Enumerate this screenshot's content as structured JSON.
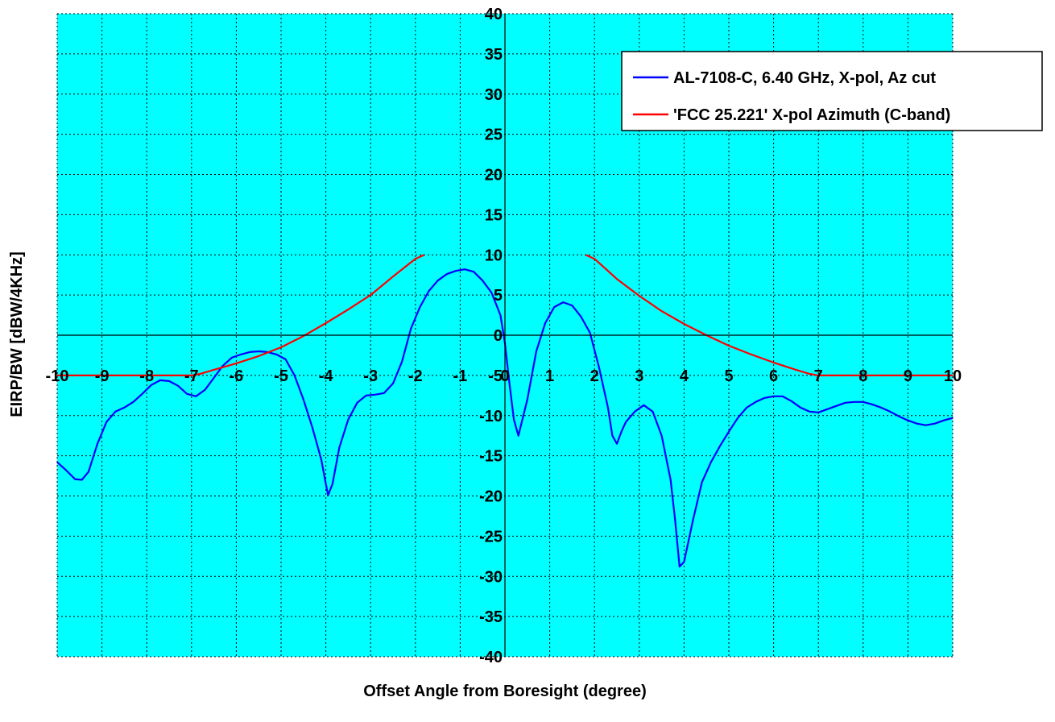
{
  "chart_data": {
    "type": "line",
    "title": "",
    "xlabel": "Offset Angle from Boresight (degree)",
    "ylabel": "EIRP/BW [dBW/4KHz]",
    "xlim": [
      -10,
      10
    ],
    "ylim": [
      -40,
      40
    ],
    "x_ticks": [
      -10,
      -9,
      -8,
      -7,
      -6,
      -5,
      -4,
      -3,
      -2,
      -1,
      0,
      1,
      2,
      3,
      4,
      5,
      6,
      7,
      8,
      9,
      10
    ],
    "y_ticks": [
      -40,
      -35,
      -30,
      -25,
      -20,
      -15,
      -10,
      -5,
      0,
      5,
      10,
      15,
      20,
      25,
      30,
      35,
      40
    ],
    "x_tick_labels": [
      "-10",
      "-9",
      "-8",
      "-7",
      "-6",
      "-5",
      "-4",
      "-3",
      "-2",
      "-1",
      "0",
      "1",
      "2",
      "3",
      "4",
      "5",
      "6",
      "7",
      "8",
      "9",
      "10"
    ],
    "y_tick_labels": [
      "-40",
      "-35",
      "-30",
      "-25",
      "-20",
      "-15",
      "-10",
      "-5",
      "0",
      "5",
      "10",
      "15",
      "20",
      "25",
      "30",
      "35",
      "40"
    ],
    "grid": true,
    "plot_background": "#00ffff",
    "legend_position": "top-right",
    "series": [
      {
        "name": "AL-7108-C, 6.40 GHz, X-pol, Az cut",
        "color": "#0000ff",
        "x": [
          -10,
          -9.8,
          -9.6,
          -9.45,
          -9.3,
          -9.1,
          -8.9,
          -8.7,
          -8.5,
          -8.3,
          -8.1,
          -7.9,
          -7.7,
          -7.5,
          -7.3,
          -7.1,
          -6.9,
          -6.7,
          -6.5,
          -6.3,
          -6.1,
          -5.9,
          -5.7,
          -5.5,
          -5.3,
          -5.1,
          -4.9,
          -4.7,
          -4.5,
          -4.3,
          -4.1,
          -4.0,
          -3.95,
          -3.85,
          -3.7,
          -3.5,
          -3.3,
          -3.1,
          -2.9,
          -2.7,
          -2.5,
          -2.3,
          -2.1,
          -1.9,
          -1.7,
          -1.5,
          -1.3,
          -1.1,
          -0.9,
          -0.7,
          -0.5,
          -0.3,
          -0.1,
          0.0,
          0.1,
          0.2,
          0.3,
          0.5,
          0.7,
          0.9,
          1.1,
          1.3,
          1.5,
          1.7,
          1.9,
          2.1,
          2.3,
          2.4,
          2.5,
          2.6,
          2.7,
          2.9,
          3.1,
          3.3,
          3.5,
          3.7,
          3.8,
          3.9,
          4.0,
          4.2,
          4.4,
          4.6,
          4.8,
          5.0,
          5.2,
          5.4,
          5.6,
          5.8,
          6.0,
          6.2,
          6.4,
          6.6,
          6.8,
          7.0,
          7.2,
          7.4,
          7.6,
          7.8,
          8.0,
          8.2,
          8.4,
          8.6,
          8.8,
          9.0,
          9.2,
          9.4,
          9.6,
          9.8,
          10.0
        ],
        "y": [
          -15.8,
          -16.8,
          -17.9,
          -18.0,
          -17.0,
          -13.5,
          -10.8,
          -9.5,
          -9.0,
          -8.3,
          -7.3,
          -6.2,
          -5.6,
          -5.7,
          -6.3,
          -7.3,
          -7.6,
          -6.8,
          -5.3,
          -3.8,
          -2.8,
          -2.4,
          -2.1,
          -2.0,
          -2.1,
          -2.4,
          -3.0,
          -5.0,
          -8.0,
          -11.5,
          -15.5,
          -18.5,
          -19.9,
          -18.5,
          -14.0,
          -10.5,
          -8.4,
          -7.5,
          -7.4,
          -7.2,
          -6.0,
          -3.3,
          0.8,
          3.5,
          5.5,
          6.8,
          7.6,
          8.0,
          8.2,
          7.9,
          6.8,
          5.3,
          2.5,
          -1.0,
          -6.0,
          -10.5,
          -12.5,
          -8.0,
          -2.0,
          1.5,
          3.5,
          4.1,
          3.7,
          2.3,
          0.3,
          -4.0,
          -9.0,
          -12.5,
          -13.5,
          -12.0,
          -10.8,
          -9.5,
          -8.7,
          -9.5,
          -12.5,
          -18.0,
          -23.0,
          -28.8,
          -28.2,
          -23.0,
          -18.3,
          -15.8,
          -13.8,
          -12.0,
          -10.3,
          -9.0,
          -8.3,
          -7.8,
          -7.6,
          -7.6,
          -8.2,
          -9.0,
          -9.5,
          -9.6,
          -9.2,
          -8.8,
          -8.4,
          -8.3,
          -8.3,
          -8.6,
          -9.0,
          -9.5,
          -10.1,
          -10.6,
          -11.0,
          -11.2,
          -11.0,
          -10.6,
          -10.3
        ]
      },
      {
        "name": "'FCC 25.221' X-pol Azimuth (C-band)",
        "color": "#ff0000",
        "segments": [
          {
            "x": [
              -10,
              -9.5,
              -9.0,
              -8.5,
              -8.0,
              -7.5,
              -7.0,
              -6.8,
              -6.5,
              -6.0,
              -5.5,
              -5.0,
              -4.5,
              -4.0,
              -3.5,
              -3.0,
              -2.5,
              -2.0,
              -1.8
            ],
            "y": [
              -5.0,
              -5.0,
              -5.0,
              -5.0,
              -5.0,
              -5.0,
              -5.0,
              -4.8,
              -4.3,
              -3.5,
              -2.6,
              -1.5,
              -0.1,
              1.5,
              3.2,
              5.0,
              7.3,
              9.5,
              10.0
            ]
          },
          {
            "x": [
              1.8,
              2.0,
              2.5,
              3.0,
              3.5,
              4.0,
              4.5,
              5.0,
              5.5,
              6.0,
              6.5,
              6.8,
              7.0,
              7.5,
              8.0,
              8.5,
              9.0,
              9.5,
              10.0
            ],
            "y": [
              10.0,
              9.5,
              7.0,
              4.9,
              3.0,
              1.4,
              0.0,
              -1.3,
              -2.4,
              -3.4,
              -4.3,
              -4.8,
              -5.0,
              -5.0,
              -5.0,
              -5.0,
              -5.0,
              -5.0,
              -5.0
            ]
          }
        ]
      }
    ]
  }
}
